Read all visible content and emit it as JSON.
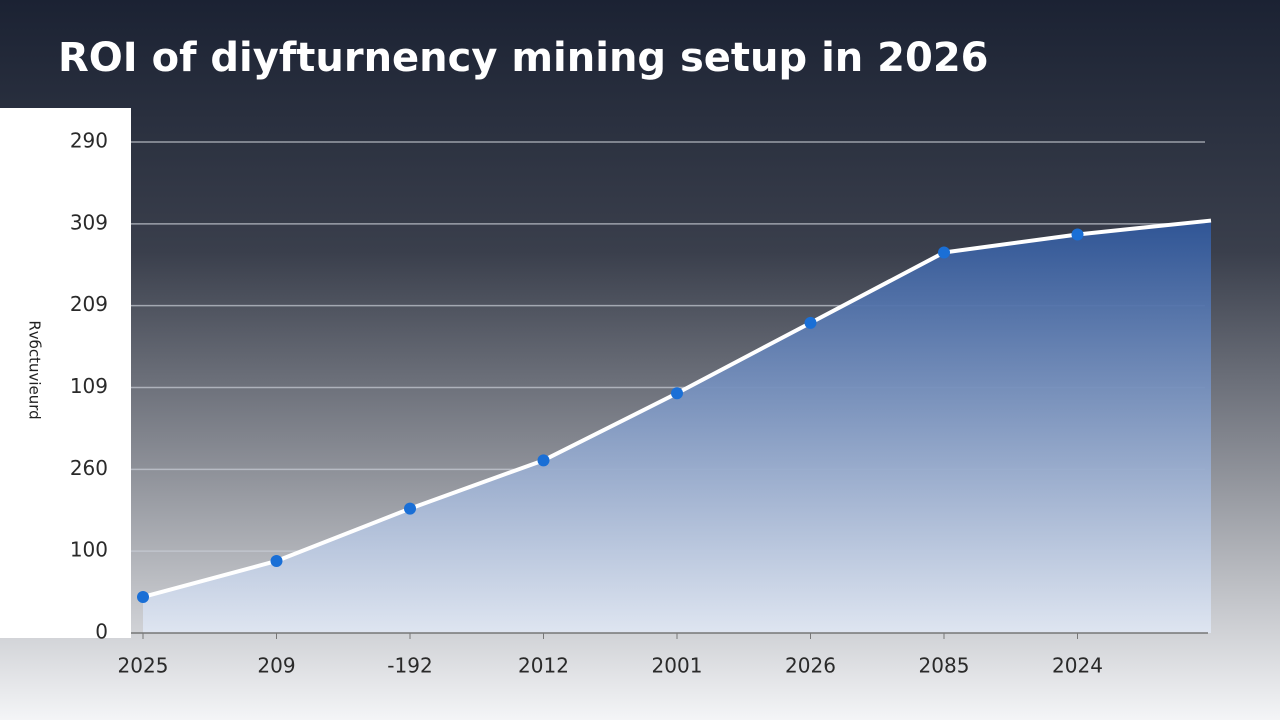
{
  "chart_data": {
    "type": "area",
    "title": "ROI of diyfturnency mining setup in 2026",
    "y_label": "Rvбctuvieurd",
    "categories": [
      "2025",
      "209",
      "-192",
      "2012",
      "2001",
      "2026",
      "2085",
      "2024",
      null
    ],
    "values": [
      0.44,
      0.88,
      1.52,
      2.11,
      2.93,
      3.79,
      4.65,
      4.87,
      5.04
    ],
    "line_color": "#ffffff",
    "marker_color": "#1a6fd6",
    "fill_color": "#3f68b0",
    "ylim": [
      0,
      6
    ],
    "yticks": [
      {
        "value": 0,
        "label": "0"
      },
      {
        "value": 1,
        "label": "100"
      },
      {
        "value": 2,
        "label": "260"
      },
      {
        "value": 3,
        "label": "109"
      },
      {
        "value": 4,
        "label": "209"
      },
      {
        "value": 5,
        "label": "309"
      },
      {
        "value": 6,
        "label": "290"
      }
    ],
    "grid": true
  }
}
